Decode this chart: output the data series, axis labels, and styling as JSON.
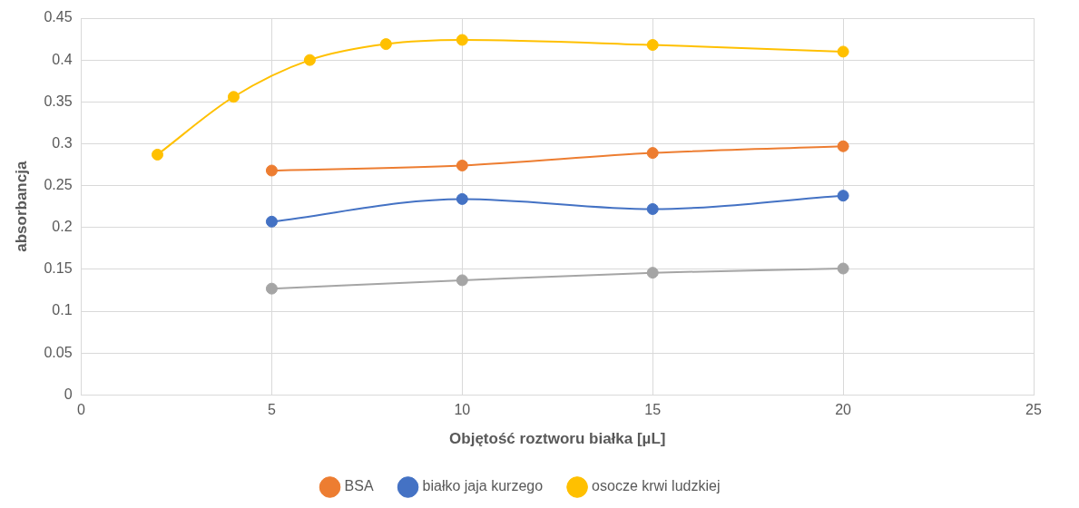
{
  "chart_data": {
    "type": "line",
    "xlabel": "Objętość roztworu białka [µL]",
    "ylabel": "absorbancja",
    "xlim": [
      0,
      25
    ],
    "xticks": [
      0,
      5,
      10,
      15,
      20,
      25
    ],
    "ylim": [
      0,
      0.45
    ],
    "yticks": [
      0,
      0.05,
      0.1,
      0.15,
      0.2,
      0.25,
      0.3,
      0.35,
      0.4,
      0.45
    ],
    "grid": true,
    "legend": "bottom",
    "marker": "circle",
    "line_style": "solid",
    "series": [
      {
        "name": "BSA",
        "color": "#ed7d31",
        "x": [
          5,
          10,
          15,
          20
        ],
        "values": [
          0.268,
          0.274,
          0.289,
          0.297
        ]
      },
      {
        "color": "#a5a5a5",
        "x": [
          5,
          10,
          15,
          20
        ],
        "values": [
          0.127,
          0.137,
          0.146,
          0.151
        ]
      },
      {
        "name": "białko jaja kurzego",
        "color": "#4472c4",
        "x": [
          5,
          10,
          15,
          20
        ],
        "values": [
          0.207,
          0.234,
          0.222,
          0.238
        ]
      },
      {
        "name": "osocze krwi ludzkiej",
        "color": "#ffc000",
        "x": [
          2,
          4,
          6,
          8,
          10,
          15,
          20
        ],
        "values": [
          0.287,
          0.356,
          0.4,
          0.419,
          0.424,
          0.418,
          0.41
        ]
      }
    ]
  }
}
